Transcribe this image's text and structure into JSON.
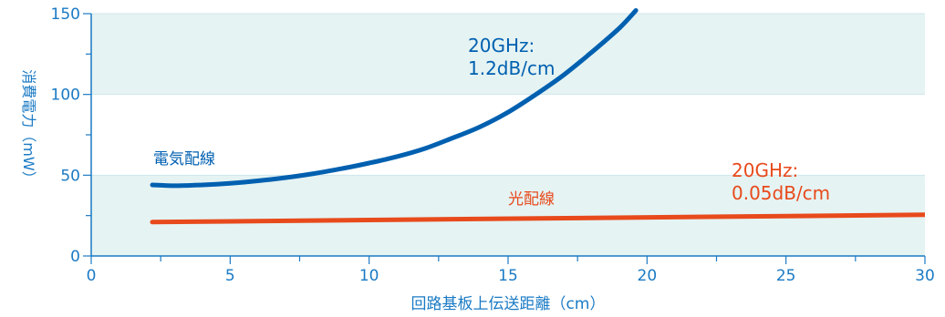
{
  "chart_data": {
    "type": "line",
    "xlabel": "回路基板上伝送距離（cm）",
    "ylabel": "消費電力（mW）",
    "xlim": [
      0,
      30
    ],
    "ylim": [
      0,
      150
    ],
    "x_ticks": [
      "0",
      "5",
      "10",
      "15",
      "20",
      "25",
      "30"
    ],
    "y_ticks": [
      "0",
      "50",
      "100",
      "150"
    ],
    "grid": "alternating horizontal bands",
    "series": [
      {
        "name": "電気配線",
        "annotation": [
          "20GHz:",
          "1.2dB/cm"
        ],
        "color": "#0060b0",
        "x": [
          2.2,
          3,
          4,
          5,
          6,
          7,
          8,
          9,
          10,
          11,
          12,
          13,
          14,
          15,
          16,
          17,
          18,
          19,
          19.6
        ],
        "y": [
          44,
          43.5,
          44,
          45,
          46.5,
          48.5,
          51,
          54,
          57.5,
          61.5,
          66.5,
          73,
          80,
          89,
          100,
          112,
          126,
          141,
          152
        ]
      },
      {
        "name": "光配線",
        "annotation": [
          "20GHz:",
          "0.05dB/cm"
        ],
        "color": "#e84a1c",
        "x": [
          2.2,
          30
        ],
        "y": [
          21,
          25.5
        ]
      }
    ]
  }
}
